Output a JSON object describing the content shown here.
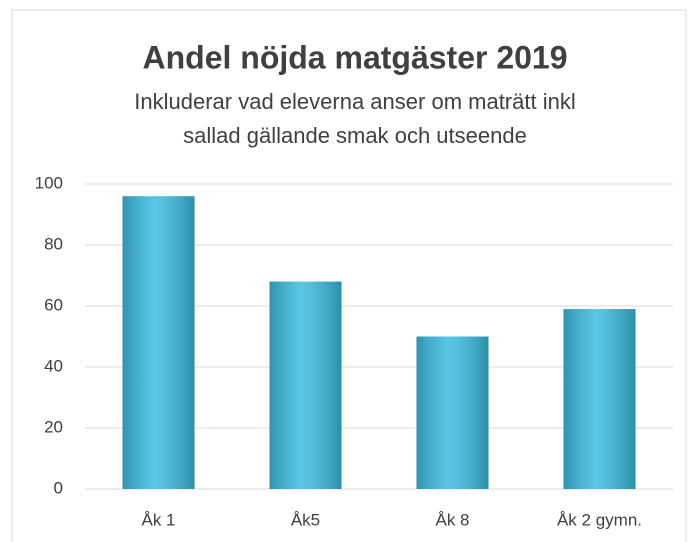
{
  "chart_data": {
    "type": "bar",
    "title": "Andel nöjda matgäster 2019",
    "subtitle": [
      "Inkluderar vad eleverna anser om maträtt inkl",
      "sallad gällande smak och utseende"
    ],
    "categories": [
      "Åk 1",
      "Åk5",
      "Åk 8",
      "Åk 2 gymn."
    ],
    "values": [
      96,
      68,
      50,
      59
    ],
    "color": "#3bbde0",
    "ylim": [
      0,
      100
    ],
    "yticks": [
      0,
      20,
      40,
      60,
      80,
      100
    ],
    "grid": true
  }
}
